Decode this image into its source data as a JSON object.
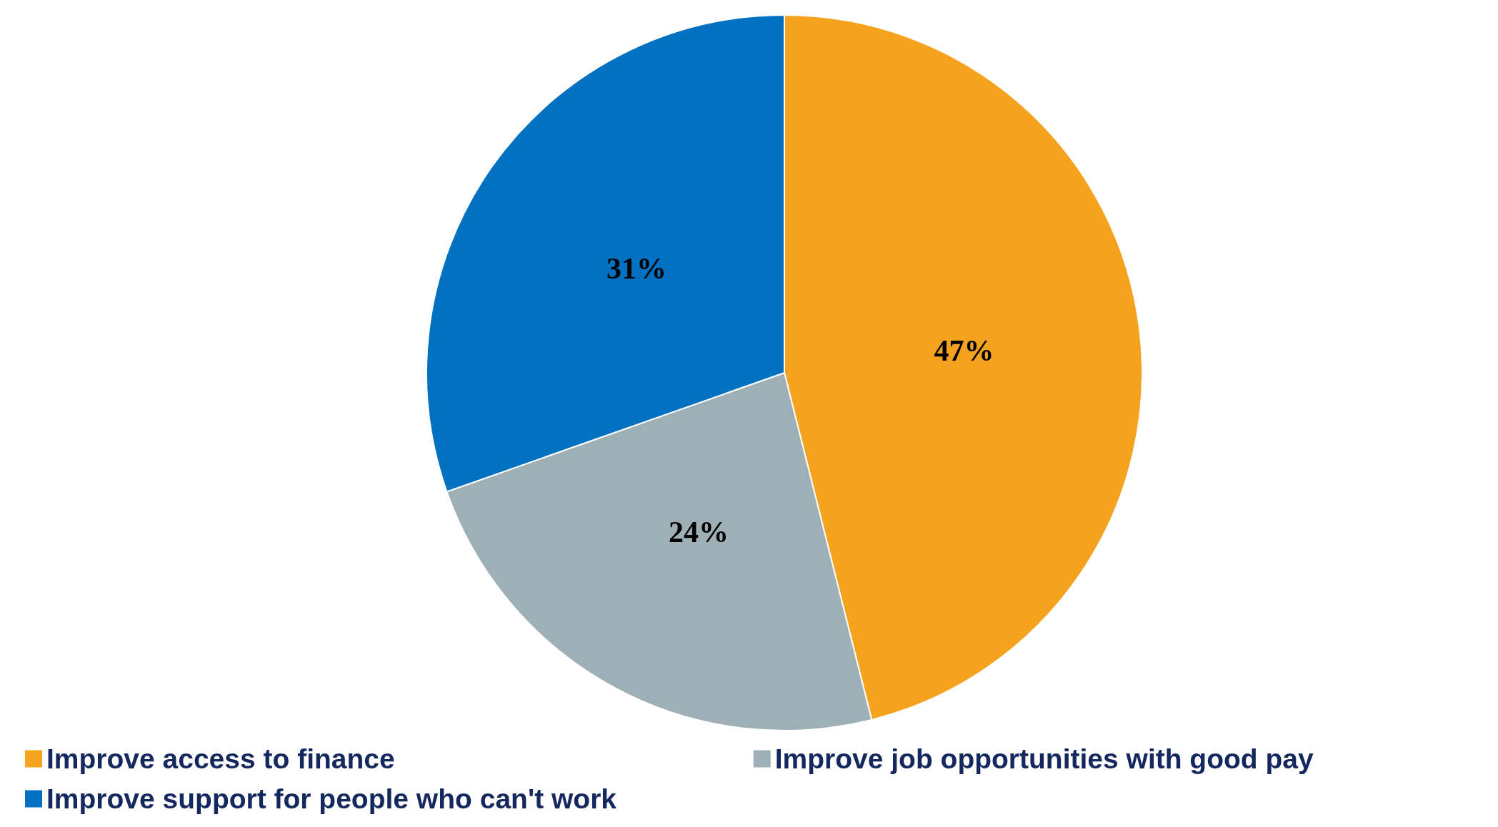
{
  "chart_data": {
    "type": "pie",
    "categories": [
      "Improve access to finance",
      "Improve job opportunities with good pay",
      "Improve support for people who can't work"
    ],
    "values": [
      47,
      24,
      31
    ],
    "value_labels": [
      "47%",
      "24%",
      "31%"
    ],
    "colors": [
      "#f5a31f",
      "#9eafb5",
      "#0271c1"
    ],
    "legend": "bottom left"
  }
}
